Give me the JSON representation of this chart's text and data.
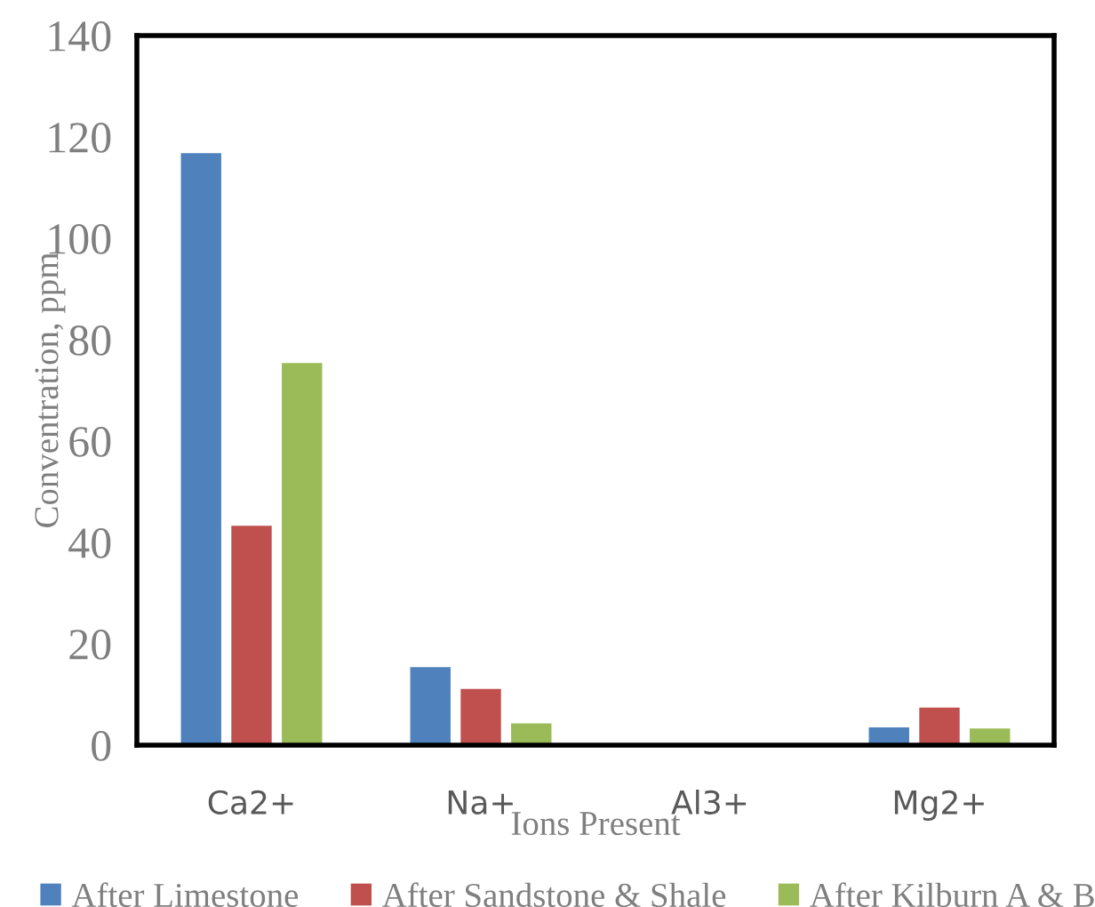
{
  "chart_data": {
    "type": "bar",
    "xlabel": "Ions Present",
    "ylabel": "Conventration, ppm",
    "categories": [
      "Ca2+",
      "Na+",
      "Al3+",
      "Mg2+"
    ],
    "series": [
      {
        "name": "After Limestone",
        "color": "#4f81bd",
        "values": [
          116.8,
          15.4,
          null,
          3.5
        ]
      },
      {
        "name": "After Sandstone & Shale",
        "color": "#c0504d",
        "values": [
          43.3,
          11.1,
          null,
          7.4
        ]
      },
      {
        "name": "After Kilburn A & B",
        "color": "#9bbb59",
        "values": [
          75.4,
          4.3,
          null,
          3.3
        ]
      }
    ],
    "ylim": [
      0,
      140
    ],
    "yticks": [
      0,
      20,
      40,
      60,
      80,
      100,
      120,
      140
    ],
    "grid": false,
    "legend": "bottom"
  }
}
